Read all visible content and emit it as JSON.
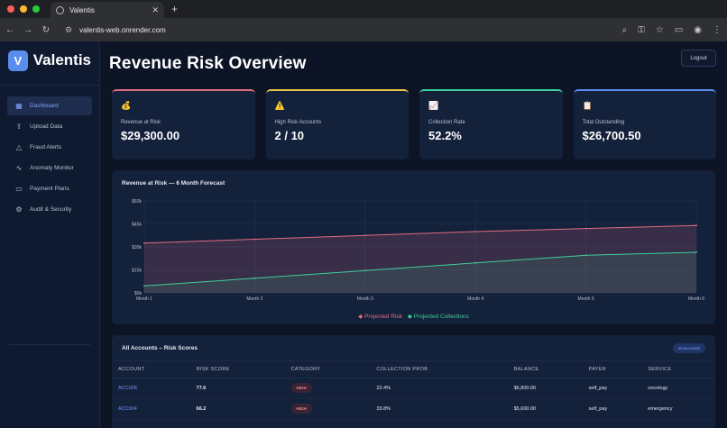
{
  "browser": {
    "tab_title": "Valentis",
    "url": "valentis-web.onrender.com"
  },
  "brand": {
    "logo_letter": "V",
    "name": "Valentis"
  },
  "sidebar": {
    "items": [
      {
        "label": "Dashboard",
        "icon": "grid-icon"
      },
      {
        "label": "Upload Data",
        "icon": "upload-icon"
      },
      {
        "label": "Fraud Alerts",
        "icon": "warning-icon"
      },
      {
        "label": "Anomaly Monitor",
        "icon": "pulse-icon"
      },
      {
        "label": "Payment Plans",
        "icon": "card-icon"
      },
      {
        "label": "Audit & Security",
        "icon": "gear-icon"
      }
    ]
  },
  "header": {
    "title": "Revenue Risk Overview",
    "logout_label": "Logout"
  },
  "kpis": [
    {
      "emoji": "💰",
      "label": "Revenue at Risk",
      "value": "$29,300.00",
      "color": "#e06c82"
    },
    {
      "emoji": "⚠️",
      "label": "High Risk Accounts",
      "value": "2 / 10",
      "color": "#e8c34a"
    },
    {
      "emoji": "📈",
      "label": "Collection Rate",
      "value": "52.2%",
      "color": "#3ecf9b"
    },
    {
      "emoji": "📋",
      "label": "Total Outstanding",
      "value": "$26,700.50",
      "color": "#5b8def"
    }
  ],
  "chart_data": {
    "type": "area",
    "title": "Revenue at Risk — 6 Month Forecast",
    "categories": [
      "Month 1",
      "Month 2",
      "Month 3",
      "Month 4",
      "Month 5",
      "Month 6"
    ],
    "y_ticks": [
      "$0k",
      "$15k",
      "$30k",
      "$45k",
      "$60k"
    ],
    "ylim": [
      0,
      60000
    ],
    "grid": true,
    "legend": "bottom",
    "series": [
      {
        "name": "Projected Risk",
        "color": "#e06c82",
        "values": [
          32500,
          35000,
          37500,
          40000,
          42000,
          44000
        ]
      },
      {
        "name": "Projected Collections",
        "color": "#3ecf9b",
        "values": [
          4500,
          9500,
          14500,
          19500,
          24500,
          26500
        ]
      }
    ]
  },
  "table": {
    "title": "All Accounts – Risk Scores",
    "count_badge": "10 accounts",
    "columns": [
      "ACCOUNT",
      "RISK SCORE",
      "CATEGORY",
      "COLLECTION PROB",
      "BALANCE",
      "PAYER",
      "SERVICE"
    ],
    "rows": [
      {
        "account": "ACC008",
        "score": "77.6",
        "category": "HIGH",
        "prob": "22.4%",
        "balance": "$6,800.00",
        "payer": "self_pay",
        "service": "oncology"
      },
      {
        "account": "ACC004",
        "score": "66.2",
        "category": "HIGH",
        "prob": "33.8%",
        "balance": "$5,600.00",
        "payer": "self_pay",
        "service": "emergency"
      }
    ]
  }
}
